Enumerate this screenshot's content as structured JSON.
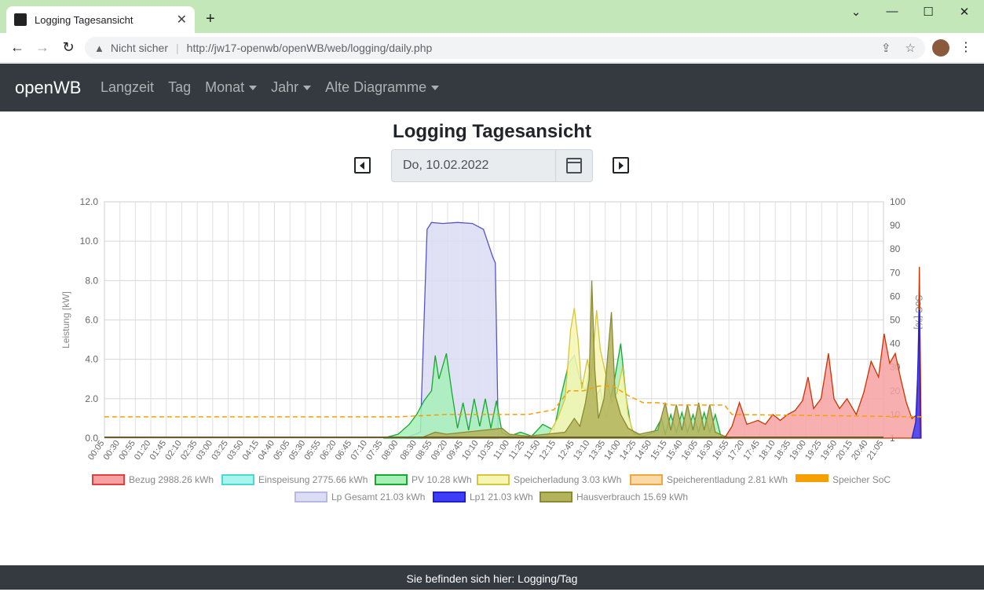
{
  "browser": {
    "tab_title": "Logging Tagesansicht",
    "new_tab": "+",
    "security_text": "Nicht sicher",
    "url": "http://jw17-openwb/openWB/web/logging/daily.php"
  },
  "app": {
    "brand": "openWB",
    "nav": [
      {
        "label": "Langzeit",
        "dropdown": false
      },
      {
        "label": "Tag",
        "dropdown": false
      },
      {
        "label": "Monat",
        "dropdown": true
      },
      {
        "label": "Jahr",
        "dropdown": true
      },
      {
        "label": "Alte Diagramme",
        "dropdown": true
      }
    ]
  },
  "page": {
    "title": "Logging Tagesansicht",
    "date_value": "Do, 10.02.2022"
  },
  "footer": {
    "text": "Sie befinden sich hier: Logging/Tag"
  },
  "chart_data": {
    "type": "area",
    "ylabel_left": "Leistung [kW]",
    "ylabel_right": "SoC [%]",
    "ylim_left": [
      0,
      12
    ],
    "ylim_right": [
      0,
      100
    ],
    "yticks_left": [
      "0.0",
      "2.0",
      "4.0",
      "6.0",
      "8.0",
      "10.0",
      "12.0"
    ],
    "yticks_right": [
      "1",
      "10",
      "20",
      "30",
      "40",
      "50",
      "60",
      "70",
      "80",
      "90",
      "100"
    ],
    "xticks": [
      "00:05",
      "00:30",
      "00:55",
      "01:20",
      "01:45",
      "02:10",
      "02:35",
      "03:00",
      "03:25",
      "03:50",
      "04:15",
      "04:40",
      "05:05",
      "05:30",
      "05:55",
      "06:20",
      "06:45",
      "07:10",
      "07:35",
      "08:00",
      "08:30",
      "08:55",
      "09:20",
      "09:45",
      "10:10",
      "10:35",
      "11:00",
      "11:25",
      "11:50",
      "12:15",
      "12:45",
      "13:10",
      "13:35",
      "14:00",
      "14:25",
      "14:50",
      "15:15",
      "15:40",
      "16:05",
      "16:30",
      "16:55",
      "17:20",
      "17:45",
      "18:10",
      "18:35",
      "19:00",
      "19:25",
      "19:50",
      "20:15",
      "20:40",
      "21:05"
    ],
    "grid": true,
    "legend_position": "bottom",
    "legend": [
      {
        "label": "Bezug 2988.26 kWh",
        "fill": "#f7a1a1",
        "stroke": "#e04040"
      },
      {
        "label": "Einspeisung 2775.66 kWh",
        "fill": "#a8f5f0",
        "stroke": "#4ad8d0"
      },
      {
        "label": "PV 10.28 kWh",
        "fill": "#a6f0b8",
        "stroke": "#17a82f"
      },
      {
        "label": "Speicherladung 3.03 kWh",
        "fill": "#f6f6b3",
        "stroke": "#d6c63e"
      },
      {
        "label": "Speicherentladung 2.81 kWh",
        "fill": "#fbd9a7",
        "stroke": "#f0a640"
      },
      {
        "label": "Speicher SoC",
        "fill": "#f5a000",
        "stroke": "#f5a000"
      },
      {
        "label": "Lp Gesamt 21.03 kWh",
        "fill": "#dcdcf5",
        "stroke": "#b8b8e8"
      },
      {
        "label": "Lp1 21.03 kWh",
        "fill": "#3d3df5",
        "stroke": "#2020d0"
      },
      {
        "label": "Hausverbrauch 15.69 kWh",
        "fill": "#b3b35c",
        "stroke": "#8a8a30"
      }
    ],
    "series": [
      {
        "name": "Lp Gesamt 21.03 kWh",
        "fill": "#dcdcf5",
        "stroke": "#5555cc",
        "points": [
          [
            8.2,
            0
          ],
          [
            8.6,
            0.3
          ],
          [
            8.78,
            10.6
          ],
          [
            8.9,
            10.95
          ],
          [
            9.2,
            10.9
          ],
          [
            9.6,
            10.95
          ],
          [
            10.0,
            10.9
          ],
          [
            10.3,
            10.6
          ],
          [
            10.55,
            9.2
          ],
          [
            10.62,
            8.9
          ],
          [
            10.7,
            0
          ]
        ]
      },
      {
        "name": "PV 10.28 kWh",
        "fill": "#a6f0b8",
        "stroke": "#17a82f",
        "points": [
          [
            7.6,
            0
          ],
          [
            8.0,
            0.2
          ],
          [
            8.3,
            0.7
          ],
          [
            8.5,
            1.2
          ],
          [
            8.7,
            1.9
          ],
          [
            8.9,
            2.4
          ],
          [
            9.0,
            4.2
          ],
          [
            9.1,
            3.0
          ],
          [
            9.3,
            4.3
          ],
          [
            9.45,
            2.3
          ],
          [
            9.6,
            0.5
          ],
          [
            9.75,
            1.8
          ],
          [
            9.9,
            0.4
          ],
          [
            10.05,
            2.0
          ],
          [
            10.2,
            0.6
          ],
          [
            10.35,
            2.0
          ],
          [
            10.5,
            0.5
          ],
          [
            10.65,
            1.9
          ],
          [
            10.8,
            0.3
          ],
          [
            11.0,
            0.1
          ],
          [
            11.3,
            0.3
          ],
          [
            11.6,
            0.1
          ],
          [
            11.9,
            0.7
          ],
          [
            12.2,
            0.4
          ],
          [
            12.4,
            2.2
          ],
          [
            12.6,
            3.8
          ],
          [
            12.75,
            4.2
          ],
          [
            12.9,
            3.0
          ],
          [
            13.05,
            2.4
          ],
          [
            13.15,
            3.4
          ],
          [
            13.3,
            2.0
          ],
          [
            13.45,
            2.5
          ],
          [
            13.6,
            1.0
          ],
          [
            13.8,
            2.6
          ],
          [
            14.0,
            4.8
          ],
          [
            14.15,
            2.0
          ],
          [
            14.3,
            0.3
          ],
          [
            14.6,
            0.1
          ],
          [
            14.9,
            0.3
          ],
          [
            15.1,
            1.0
          ],
          [
            15.2,
            0.2
          ],
          [
            15.35,
            1.2
          ],
          [
            15.5,
            0.3
          ],
          [
            15.65,
            1.3
          ],
          [
            15.8,
            0.3
          ],
          [
            15.95,
            1.2
          ],
          [
            16.1,
            0.3
          ],
          [
            16.25,
            1.3
          ],
          [
            16.4,
            0.3
          ],
          [
            16.55,
            1.2
          ],
          [
            16.7,
            0.1
          ],
          [
            16.9,
            0
          ]
        ]
      },
      {
        "name": "Speicherladung 3.03 kWh",
        "fill": "#f6f6b3",
        "stroke": "#d6c63e",
        "points": [
          [
            12.0,
            0
          ],
          [
            12.3,
            1.0
          ],
          [
            12.5,
            2.0
          ],
          [
            12.65,
            5.5
          ],
          [
            12.75,
            6.6
          ],
          [
            12.85,
            5.0
          ],
          [
            12.95,
            2.5
          ],
          [
            13.1,
            4.0
          ],
          [
            13.2,
            3.0
          ],
          [
            13.35,
            6.5
          ],
          [
            13.45,
            4.5
          ],
          [
            13.6,
            3.2
          ],
          [
            13.75,
            1.8
          ],
          [
            13.9,
            2.3
          ],
          [
            14.05,
            3.6
          ],
          [
            14.2,
            1.2
          ],
          [
            14.35,
            0.2
          ],
          [
            14.5,
            0
          ]
        ]
      },
      {
        "name": "Hausverbrauch 15.69 kWh",
        "fill": "#b3b35c",
        "stroke": "#8a8a30",
        "points": [
          [
            8.6,
            0
          ],
          [
            9.0,
            0.3
          ],
          [
            9.3,
            0.2
          ],
          [
            10.8,
            0.5
          ],
          [
            11.0,
            0.2
          ],
          [
            11.5,
            0.1
          ],
          [
            12.5,
            0.3
          ],
          [
            12.75,
            1.0
          ],
          [
            12.9,
            0.6
          ],
          [
            13.05,
            1.8
          ],
          [
            13.15,
            3.0
          ],
          [
            13.22,
            8.0
          ],
          [
            13.3,
            3.5
          ],
          [
            13.4,
            1.0
          ],
          [
            13.55,
            2.0
          ],
          [
            13.75,
            6.4
          ],
          [
            13.85,
            2.2
          ],
          [
            14.0,
            1.2
          ],
          [
            14.2,
            0.5
          ],
          [
            14.5,
            0.2
          ],
          [
            15.0,
            0.4
          ],
          [
            15.2,
            1.8
          ],
          [
            15.35,
            0.4
          ],
          [
            15.5,
            1.7
          ],
          [
            15.65,
            0.4
          ],
          [
            15.8,
            1.7
          ],
          [
            15.95,
            0.4
          ],
          [
            16.1,
            1.8
          ],
          [
            16.25,
            0.4
          ],
          [
            16.4,
            1.7
          ],
          [
            16.55,
            0.3
          ],
          [
            16.8,
            0.1
          ],
          [
            17.0,
            0
          ]
        ]
      },
      {
        "name": "Bezug 2988.26 kWh",
        "fill": "#f7a1a1",
        "stroke": "#cc3300",
        "points": [
          [
            16.8,
            0
          ],
          [
            17.0,
            0.6
          ],
          [
            17.2,
            1.8
          ],
          [
            17.4,
            0.7
          ],
          [
            17.7,
            0.9
          ],
          [
            17.9,
            0.7
          ],
          [
            18.1,
            1.2
          ],
          [
            18.3,
            0.9
          ],
          [
            18.5,
            1.2
          ],
          [
            18.7,
            1.4
          ],
          [
            18.9,
            1.9
          ],
          [
            19.05,
            3.1
          ],
          [
            19.2,
            1.5
          ],
          [
            19.4,
            2.0
          ],
          [
            19.6,
            4.3
          ],
          [
            19.75,
            2.0
          ],
          [
            19.9,
            1.5
          ],
          [
            20.1,
            2.0
          ],
          [
            20.35,
            1.2
          ],
          [
            20.55,
            2.3
          ],
          [
            20.75,
            3.9
          ],
          [
            20.95,
            3.1
          ],
          [
            21.1,
            5.3
          ],
          [
            21.25,
            3.8
          ],
          [
            21.4,
            4.3
          ],
          [
            21.55,
            3.0
          ],
          [
            21.7,
            1.8
          ],
          [
            21.85,
            1.0
          ],
          [
            22.0,
            1.2
          ],
          [
            22.05,
            8.7
          ],
          [
            22.1,
            0
          ]
        ]
      },
      {
        "name": "Lp1 21.03 kWh",
        "fill": "#3d3df5",
        "stroke": "#2020d0",
        "points": [
          [
            21.85,
            0
          ],
          [
            21.95,
            0.8
          ],
          [
            22.0,
            3.0
          ],
          [
            22.05,
            6.5
          ],
          [
            22.08,
            0
          ]
        ]
      }
    ],
    "soc_series": {
      "name": "Speicher SoC",
      "stroke": "#f5a000",
      "points": [
        [
          0.08,
          9
        ],
        [
          8.0,
          9
        ],
        [
          9.3,
          10
        ],
        [
          11.5,
          10
        ],
        [
          12.2,
          12
        ],
        [
          12.6,
          20
        ],
        [
          13.0,
          20
        ],
        [
          13.4,
          22
        ],
        [
          13.8,
          22
        ],
        [
          14.2,
          18
        ],
        [
          14.6,
          15
        ],
        [
          15.0,
          15
        ],
        [
          15.4,
          14
        ],
        [
          16.8,
          14
        ],
        [
          17.0,
          10
        ],
        [
          22.1,
          9
        ]
      ]
    }
  }
}
